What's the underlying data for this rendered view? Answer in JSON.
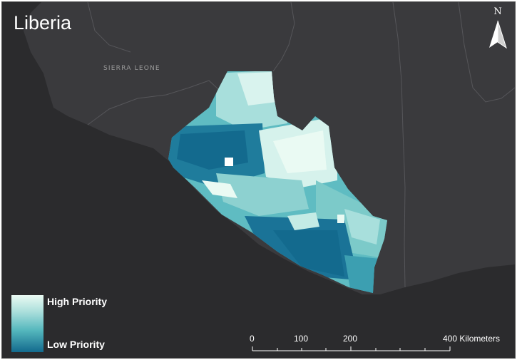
{
  "map": {
    "title": "Liberia",
    "neighbor_label": "SIERRA LEONE",
    "north_arrow": {
      "letter": "N",
      "icon": "north-arrow-icon"
    }
  },
  "legend": {
    "high_label": "High Priority",
    "low_label": "Low Priority",
    "colors": {
      "high": "#eafaf3",
      "low": "#136a8e"
    }
  },
  "scale_bar": {
    "labels": [
      "0",
      "100",
      "200",
      "400 Kilometers"
    ]
  },
  "colors": {
    "sea": "#2b2b2d",
    "land": "#3a3a3d",
    "borders": "#555558"
  }
}
